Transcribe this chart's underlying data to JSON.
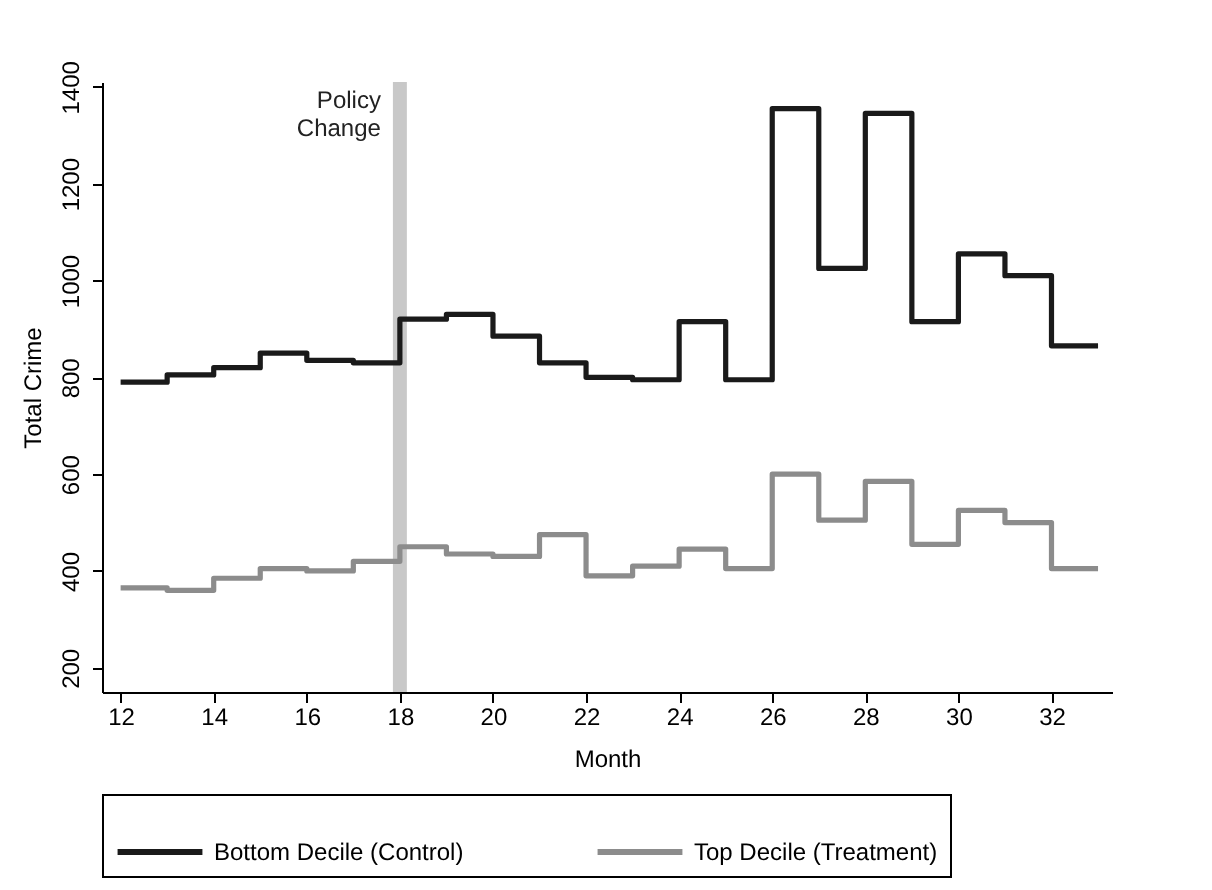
{
  "chart_data": {
    "type": "step",
    "xlabel": "Month",
    "ylabel": "Total Crime",
    "x": [
      12,
      13,
      14,
      15,
      16,
      17,
      18,
      19,
      20,
      21,
      22,
      23,
      24,
      25,
      26,
      27,
      28,
      29,
      30,
      31,
      32,
      33
    ],
    "series": [
      {
        "name": "Bottom Decile (Control)",
        "color": "#1a1a1a",
        "values": [
          790,
          805,
          820,
          850,
          835,
          830,
          920,
          930,
          885,
          830,
          800,
          795,
          915,
          795,
          1355,
          1025,
          1345,
          915,
          1055,
          1010,
          865,
          865
        ]
      },
      {
        "name": "Top Decile (Treatment)",
        "color": "#8c8c8c",
        "values": [
          365,
          360,
          385,
          405,
          400,
          420,
          450,
          435,
          430,
          475,
          390,
          410,
          445,
          405,
          600,
          505,
          585,
          455,
          525,
          500,
          405,
          405
        ]
      }
    ],
    "xlim": [
      11.6,
      33.3
    ],
    "ylim": [
      150,
      1410
    ],
    "xticks": [
      12,
      14,
      16,
      18,
      20,
      22,
      24,
      26,
      28,
      30,
      32
    ],
    "yticks": [
      200,
      400,
      600,
      800,
      1000,
      1200,
      1400
    ],
    "bands": [
      {
        "axis": "x",
        "from": 17.85,
        "to": 18.15,
        "label": "Policy Change",
        "color": "#c8c8c8"
      }
    ],
    "grid": false,
    "legend": "bottom",
    "marker": "none",
    "line_style": "solid"
  }
}
